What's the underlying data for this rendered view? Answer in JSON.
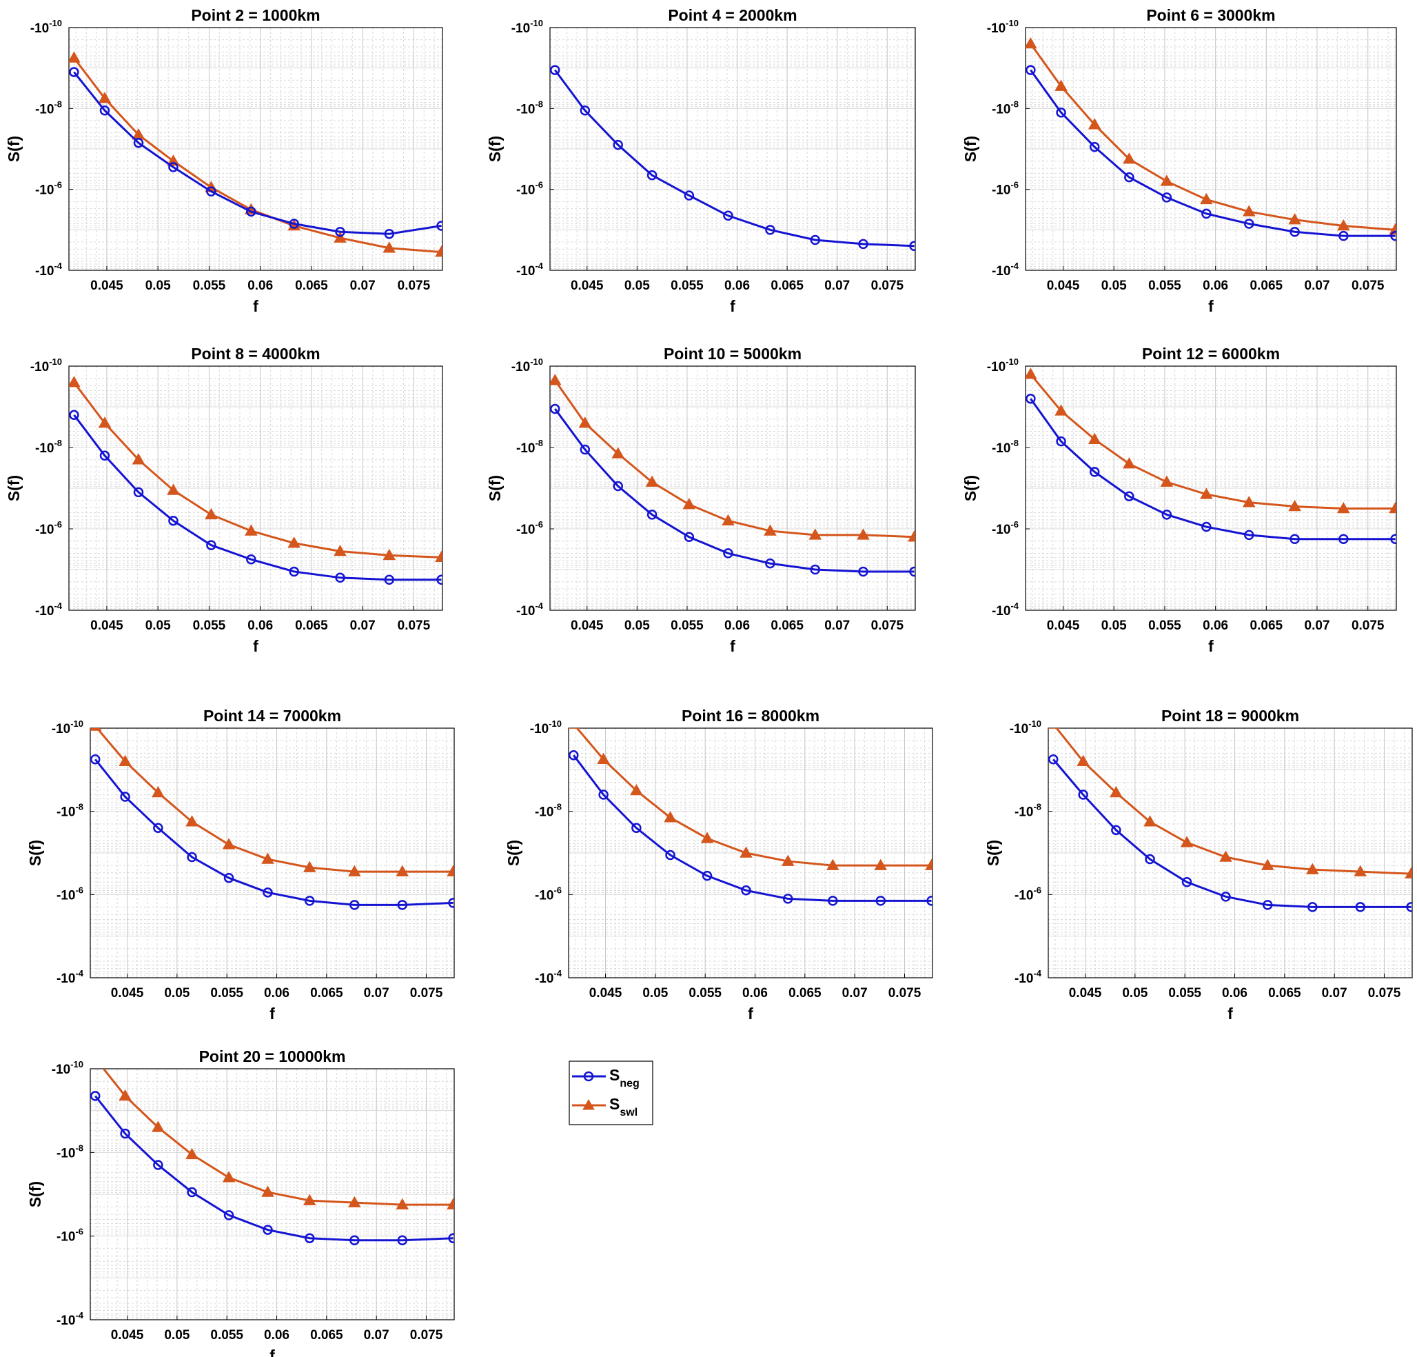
{
  "chart_data": {
    "type": "line",
    "xlabel": "f",
    "ylabel": "S(f)",
    "x": [
      0.0418,
      0.0448,
      0.0481,
      0.0515,
      0.0552,
      0.0591,
      0.0633,
      0.0678,
      0.0726,
      0.0777
    ],
    "xlim": [
      0.0413,
      0.0778
    ],
    "xticks": [
      0.045,
      0.05,
      0.055,
      0.06,
      0.065,
      0.07,
      0.075
    ],
    "xtick_labels": [
      "0.045",
      "0.05",
      "0.055",
      "0.06",
      "0.065",
      "0.07",
      "0.075"
    ],
    "ylim_log10": [
      -10,
      -4
    ],
    "yticks": [
      {
        "base": "-10",
        "exp": "-10",
        "log": -10
      },
      {
        "base": "-10",
        "exp": "-8",
        "log": -8
      },
      {
        "base": "-10",
        "exp": "-6",
        "log": -6
      },
      {
        "base": "-10",
        "exp": "-4",
        "log": -4
      }
    ],
    "legend": {
      "position": "below-middle",
      "entries": [
        {
          "base": "S",
          "sub": "neg",
          "color": "#1414d2",
          "marker": "circle"
        },
        {
          "base": "S",
          "sub": "swl",
          "color": "#d4561c",
          "marker": "triangle"
        }
      ]
    },
    "colors": {
      "neg": "#1414d2",
      "swl": "#d4561c",
      "grid": "#d9d9d9",
      "axis": "#000000"
    },
    "panels": [
      {
        "title": "Point 2 = 1000km",
        "neg": [
          -8.9,
          -7.95,
          -7.15,
          -6.55,
          -5.95,
          -5.45,
          -5.15,
          -4.95,
          -4.9,
          -5.1
        ],
        "swl": [
          -9.25,
          -8.25,
          -7.35,
          -6.7,
          -6.05,
          -5.5,
          -5.1,
          -4.8,
          -4.55,
          -4.45
        ]
      },
      {
        "title": "Point 4 = 2000km",
        "neg": [
          -8.95,
          -7.95,
          -7.1,
          -6.35,
          -5.85,
          -5.35,
          -5.0,
          -4.75,
          -4.65,
          -4.6
        ]
      },
      {
        "title": "Point 6 = 3000km",
        "neg": [
          -8.95,
          -7.9,
          -7.05,
          -6.3,
          -5.8,
          -5.4,
          -5.15,
          -4.95,
          -4.85,
          -4.85
        ],
        "swl": [
          -9.6,
          -8.55,
          -7.6,
          -6.75,
          -6.2,
          -5.75,
          -5.45,
          -5.25,
          -5.1,
          -5.0
        ]
      },
      {
        "title": "Point 8 = 4000km",
        "neg": [
          -8.8,
          -7.8,
          -6.9,
          -6.2,
          -5.6,
          -5.25,
          -4.95,
          -4.8,
          -4.75,
          -4.75
        ],
        "swl": [
          -9.6,
          -8.6,
          -7.7,
          -6.95,
          -6.35,
          -5.95,
          -5.65,
          -5.45,
          -5.35,
          -5.3
        ]
      },
      {
        "title": "Point 10 = 5000km",
        "neg": [
          -8.95,
          -7.95,
          -7.05,
          -6.35,
          -5.8,
          -5.4,
          -5.15,
          -5.0,
          -4.95,
          -4.95
        ],
        "swl": [
          -9.65,
          -8.6,
          -7.85,
          -7.15,
          -6.6,
          -6.2,
          -5.95,
          -5.85,
          -5.85,
          -5.8
        ]
      },
      {
        "title": "Point 12 = 6000km",
        "neg": [
          -9.2,
          -8.15,
          -7.4,
          -6.8,
          -6.35,
          -6.05,
          -5.85,
          -5.75,
          -5.75,
          -5.75
        ],
        "swl": [
          -9.8,
          -8.9,
          -8.2,
          -7.6,
          -7.15,
          -6.85,
          -6.65,
          -6.55,
          -6.5,
          -6.5
        ]
      },
      {
        "title": "Point 14 = 7000km",
        "neg": [
          -9.25,
          -8.35,
          -7.6,
          -6.9,
          -6.4,
          -6.05,
          -5.85,
          -5.75,
          -5.75,
          -5.8
        ],
        "swl": [
          -10.05,
          -9.2,
          -8.45,
          -7.75,
          -7.2,
          -6.85,
          -6.65,
          -6.55,
          -6.55,
          -6.55
        ]
      },
      {
        "title": "Point 16 = 8000km",
        "neg": [
          -9.35,
          -8.4,
          -7.6,
          -6.95,
          -6.45,
          -6.1,
          -5.9,
          -5.85,
          -5.85,
          -5.85
        ],
        "swl": [
          -10.1,
          -9.25,
          -8.5,
          -7.85,
          -7.35,
          -7.0,
          -6.8,
          -6.7,
          -6.7,
          -6.7
        ]
      },
      {
        "title": "Point 18 = 9000km",
        "neg": [
          -9.25,
          -8.4,
          -7.55,
          -6.85,
          -6.3,
          -5.95,
          -5.75,
          -5.7,
          -5.7,
          -5.7
        ],
        "swl": [
          -10.1,
          -9.2,
          -8.45,
          -7.75,
          -7.25,
          -6.9,
          -6.7,
          -6.6,
          -6.55,
          -6.5
        ]
      },
      {
        "title": "Point 20 = 10000km",
        "neg": [
          -9.35,
          -8.45,
          -7.7,
          -7.05,
          -6.5,
          -6.15,
          -5.95,
          -5.9,
          -5.9,
          -5.95
        ],
        "swl": [
          -10.25,
          -9.35,
          -8.6,
          -7.95,
          -7.4,
          -7.05,
          -6.85,
          -6.8,
          -6.75,
          -6.75
        ]
      }
    ]
  }
}
